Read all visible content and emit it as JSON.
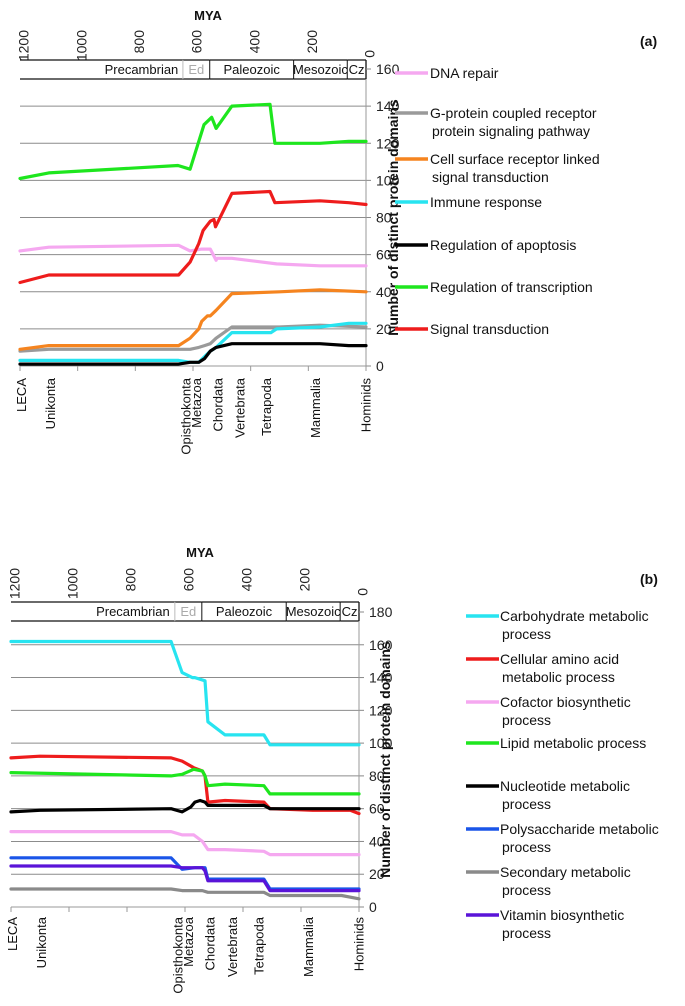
{
  "chart_data": [
    {
      "type": "line",
      "panel_label": "(a)",
      "title": "MYA",
      "xlabel": "MYA",
      "ylabel": "Number of distinct protein domains",
      "xlim": [
        1200,
        0
      ],
      "ylim": [
        0,
        160
      ],
      "x_ticks": [
        1200,
        1000,
        800,
        600,
        400,
        200,
        0
      ],
      "y_ticks": [
        0,
        20,
        40,
        60,
        80,
        100,
        120,
        140,
        160
      ],
      "grid": true,
      "legend_position": "right",
      "eras": [
        {
          "label": "Precambrian",
          "from": 1200,
          "to": 635,
          "dim": false
        },
        {
          "label": "Ed",
          "from": 635,
          "to": 542,
          "dim": true
        },
        {
          "label": "Paleozoic",
          "from": 542,
          "to": 251,
          "dim": false
        },
        {
          "label": "Mesozoic",
          "from": 251,
          "to": 65,
          "dim": false
        },
        {
          "label": "Cz",
          "from": 65,
          "to": 0,
          "dim": false
        }
      ],
      "clades": [
        {
          "label": "LECA",
          "mya": 1200
        },
        {
          "label": "Unikonta",
          "mya": 1100
        },
        {
          "label": "Opisthokonta",
          "mya": 630
        },
        {
          "label": "Metazoa",
          "mya": 580
        },
        {
          "label": "Chordata",
          "mya": 540
        },
        {
          "label": "Vertebrata",
          "mya": 490
        },
        {
          "label": "Tetrapoda",
          "mya": 350
        },
        {
          "label": "Mammalia",
          "mya": 180
        },
        {
          "label": "Hominids",
          "mya": 5
        }
      ],
      "series": [
        {
          "name": "DNA repair",
          "color": "#f5a8f0",
          "x": [
            1200,
            1100,
            650,
            610,
            570,
            540,
            520,
            517,
            465,
            310,
            160,
            0
          ],
          "values": [
            62,
            64,
            65,
            62,
            63,
            63,
            57,
            58,
            58,
            55,
            54,
            54
          ]
        },
        {
          "name": "G-protein coupled receptor protein signaling pathway",
          "color": "#9a9a9a",
          "x": [
            1200,
            1100,
            650,
            610,
            580,
            560,
            540,
            520,
            465,
            300,
            160,
            0
          ],
          "values": [
            8,
            9,
            9,
            9,
            10,
            11,
            12,
            15,
            21,
            21,
            22,
            21
          ]
        },
        {
          "name": "Cell surface receptor linked signal transduction",
          "color": "#f5841f",
          "x": [
            1200,
            1100,
            650,
            610,
            580,
            570,
            550,
            540,
            520,
            465,
            300,
            160,
            0
          ],
          "values": [
            9,
            11,
            11,
            15,
            20,
            24,
            27,
            27,
            30,
            39,
            40,
            41,
            40
          ]
        },
        {
          "name": "Immune response",
          "color": "#27e4f0",
          "x": [
            1200,
            1100,
            650,
            610,
            580,
            560,
            540,
            520,
            465,
            330,
            310,
            160,
            60,
            0
          ],
          "values": [
            3,
            3,
            3,
            2,
            2,
            5,
            8,
            10,
            18,
            18,
            20,
            21,
            23,
            23
          ]
        },
        {
          "name": "Regulation of apoptosis",
          "color": "#000000",
          "x": [
            1200,
            1100,
            650,
            610,
            580,
            560,
            540,
            520,
            465,
            310,
            160,
            60,
            0
          ],
          "values": [
            1,
            1,
            1,
            2,
            2,
            4,
            8,
            10,
            12,
            12,
            12,
            11,
            11
          ]
        },
        {
          "name": "Regulation of transcription",
          "color": "#1ee61e",
          "x": [
            1200,
            1100,
            652,
            610,
            562,
            535,
            520,
            465,
            333,
            316,
            160,
            60,
            0
          ],
          "values": [
            101,
            104,
            108,
            106,
            130,
            134,
            128,
            140,
            141,
            120,
            120,
            121,
            121
          ]
        },
        {
          "name": "Signal transduction",
          "color": "#ee1c1c",
          "x": [
            1200,
            1100,
            650,
            610,
            580,
            565,
            540,
            527,
            522,
            465,
            333,
            316,
            160,
            60,
            0
          ],
          "values": [
            45,
            49,
            49,
            56,
            66,
            73,
            78,
            79,
            75,
            93,
            94,
            88,
            89,
            88,
            87
          ]
        }
      ]
    },
    {
      "type": "line",
      "panel_label": "(b)",
      "title": "MYA",
      "xlabel": "MYA",
      "ylabel": "Number of distinct protein domains",
      "xlim": [
        1200,
        0
      ],
      "ylim": [
        0,
        180
      ],
      "x_ticks": [
        1200,
        1000,
        800,
        600,
        400,
        200,
        0
      ],
      "y_ticks": [
        0,
        20,
        40,
        60,
        80,
        100,
        120,
        140,
        160,
        180
      ],
      "grid": true,
      "legend_position": "right",
      "eras": [
        {
          "label": "Precambrian",
          "from": 1200,
          "to": 635,
          "dim": false
        },
        {
          "label": "Ed",
          "from": 635,
          "to": 542,
          "dim": true
        },
        {
          "label": "Paleozoic",
          "from": 542,
          "to": 251,
          "dim": false
        },
        {
          "label": "Mesozoic",
          "from": 251,
          "to": 65,
          "dim": false
        },
        {
          "label": "Cz",
          "from": 65,
          "to": 0,
          "dim": false
        }
      ],
      "clades": [
        {
          "label": "LECA",
          "mya": 1200
        },
        {
          "label": "Unikonta",
          "mya": 1100
        },
        {
          "label": "Opisthokonta",
          "mya": 630
        },
        {
          "label": "Metazoa",
          "mya": 580
        },
        {
          "label": "Chordata",
          "mya": 540
        },
        {
          "label": "Vertebrata",
          "mya": 490
        },
        {
          "label": "Tetrapoda",
          "mya": 350
        },
        {
          "label": "Mammalia",
          "mya": 180
        },
        {
          "label": "Hominids",
          "mya": 5
        }
      ],
      "series": [
        {
          "name": "Carbohydrate metabolic process",
          "color": "#27e4f0",
          "x": [
            1200,
            648,
            610,
            575,
            566,
            531,
            521,
            462,
            328,
            307,
            0
          ],
          "values": [
            162,
            162,
            143,
            140,
            140,
            138,
            113,
            105,
            105,
            99,
            99
          ]
        },
        {
          "name": "Cellular amino acid metabolic process",
          "color": "#ee1c1c",
          "x": [
            1200,
            1100,
            648,
            610,
            570,
            540,
            531,
            521,
            462,
            328,
            307,
            160,
            30,
            0
          ],
          "values": [
            91,
            92,
            91,
            89,
            85,
            83,
            80,
            64,
            65,
            64,
            60,
            59,
            59,
            57
          ]
        },
        {
          "name": "Cofactor biosynthetic process",
          "color": "#f5a8f0",
          "x": [
            1200,
            648,
            610,
            570,
            540,
            521,
            462,
            328,
            307,
            0
          ],
          "values": [
            46,
            46,
            44,
            44,
            40,
            35,
            35,
            34,
            32,
            32
          ]
        },
        {
          "name": "Lipid metabolic process",
          "color": "#1ee61e",
          "x": [
            1200,
            648,
            610,
            570,
            540,
            531,
            521,
            462,
            328,
            307,
            0
          ],
          "values": [
            82,
            80,
            81,
            84,
            83,
            80,
            74,
            75,
            74,
            69,
            69
          ]
        },
        {
          "name": "Nucleotide metabolic process",
          "color": "#000000",
          "x": [
            1200,
            1100,
            648,
            610,
            580,
            566,
            548,
            531,
            521,
            462,
            328,
            307,
            0
          ],
          "values": [
            58,
            59,
            60,
            58,
            61,
            64,
            65,
            64,
            62,
            62,
            62,
            60,
            60
          ]
        },
        {
          "name": "Polysaccharide metabolic process",
          "color": "#1a55e8",
          "x": [
            1200,
            648,
            610,
            566,
            540,
            531,
            521,
            462,
            328,
            307,
            0
          ],
          "values": [
            30,
            30,
            23,
            24,
            24,
            24,
            17,
            17,
            17,
            11,
            11
          ]
        },
        {
          "name": "Secondary metabolic process",
          "color": "#8a8a8a",
          "x": [
            1200,
            648,
            610,
            540,
            521,
            462,
            328,
            307,
            60,
            0
          ],
          "values": [
            11,
            11,
            10,
            10,
            9,
            9,
            9,
            7,
            7,
            5
          ]
        },
        {
          "name": "Vitamin biosynthetic process",
          "color": "#5a14d8",
          "x": [
            1200,
            648,
            610,
            566,
            540,
            531,
            521,
            462,
            328,
            307,
            0
          ],
          "values": [
            25,
            25,
            24,
            24,
            24,
            22,
            16,
            16,
            16,
            10,
            10
          ]
        }
      ]
    }
  ]
}
